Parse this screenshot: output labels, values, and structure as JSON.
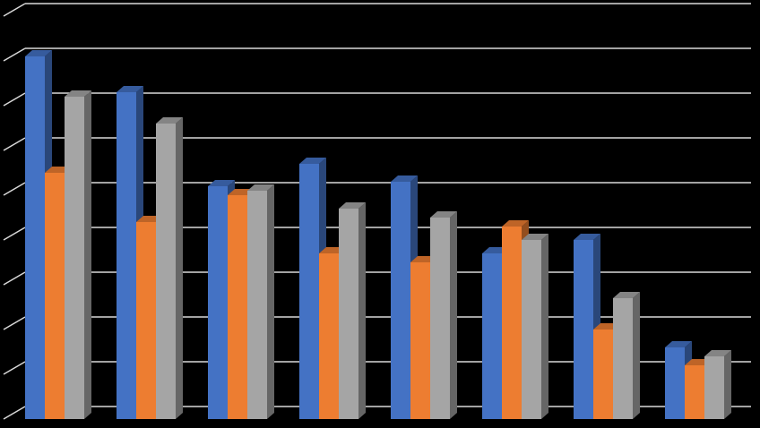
{
  "chart_data": {
    "type": "bar",
    "style": "3d-clustered-column",
    "title": "",
    "xlabel": "",
    "ylabel": "",
    "ylim": [
      0,
      9
    ],
    "grid": true,
    "legend": "none",
    "categories": [
      "",
      "",
      "",
      "",
      "",
      "",
      "",
      ""
    ],
    "series": [
      {
        "color": "#4472C4",
        "values": [
          8.1,
          7.3,
          5.2,
          5.7,
          5.3,
          3.7,
          4.0,
          1.6
        ]
      },
      {
        "color": "#ED7D31",
        "values": [
          5.5,
          4.4,
          5.0,
          3.7,
          3.5,
          4.3,
          2.0,
          1.2
        ]
      },
      {
        "color": "#A5A5A5",
        "values": [
          7.2,
          6.6,
          5.1,
          4.7,
          4.5,
          4.0,
          2.7,
          1.4
        ]
      }
    ]
  }
}
